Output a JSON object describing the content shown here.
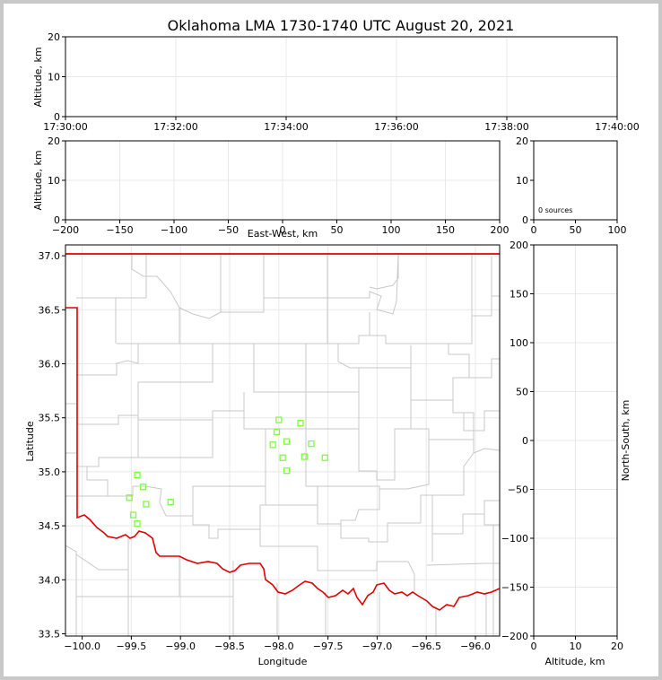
{
  "title": "Oklahoma LMA 1730-1740 UTC August 20, 2021",
  "colors": {
    "state_border": "#e00000",
    "county": "#c8c8c8",
    "grid": "#e8e8e8",
    "source_marker": "#7dff3a"
  },
  "chart_data": [
    {
      "name": "time-altitude",
      "type": "scatter",
      "xlabel": "",
      "ylabel": "Altitude, km",
      "ylim": [
        0,
        20
      ],
      "xlim": [
        "17:30:00",
        "17:40:00"
      ],
      "xticks": [
        "17:30:00",
        "17:32:00",
        "17:34:00",
        "17:36:00",
        "17:38:00",
        "17:40:00"
      ],
      "yticks": [
        "0",
        "10",
        "20"
      ],
      "grid": true,
      "points": []
    },
    {
      "name": "ew-altitude",
      "type": "scatter",
      "xlabel": "East-West, km",
      "ylabel": "Altitude, km",
      "xlim": [
        -200,
        200
      ],
      "ylim": [
        0,
        20
      ],
      "xticks": [
        "−200",
        "−150",
        "−100",
        "−50",
        "0",
        "50",
        "100",
        "150",
        "200"
      ],
      "yticks": [
        "0",
        "10",
        "20"
      ],
      "grid": true,
      "points": []
    },
    {
      "name": "histogram",
      "type": "bar",
      "xlabel": "",
      "ylabel": "",
      "xlim": [
        0,
        100
      ],
      "ylim": [
        0,
        20
      ],
      "xticks": [
        "0",
        "50",
        "100"
      ],
      "yticks": [
        "0",
        "10",
        "20"
      ],
      "annotation": "0 sources",
      "values": []
    },
    {
      "name": "plan-view",
      "type": "scatter",
      "xlabel": "Longitude",
      "ylabel": "Latitude",
      "xlim": [
        -100.15,
        -95.75
      ],
      "ylim": [
        33.48,
        37.08
      ],
      "xticks": [
        "−100.0",
        "−99.5",
        "−99.0",
        "−98.5",
        "−98.0",
        "−97.5",
        "−97.0",
        "−96.5",
        "−96.0"
      ],
      "yticks": [
        "33.5",
        "34.0",
        "34.5",
        "35.0",
        "35.5",
        "36.0",
        "36.5",
        "37.0"
      ],
      "grid": true,
      "map": "Oklahoma state outline (red) with county boundaries (gray)",
      "points": [
        {
          "lon": -99.44,
          "lat": 34.97
        },
        {
          "lon": -99.38,
          "lat": 34.86
        },
        {
          "lon": -99.52,
          "lat": 34.76
        },
        {
          "lon": -99.35,
          "lat": 34.7
        },
        {
          "lon": -99.48,
          "lat": 34.6
        },
        {
          "lon": -99.44,
          "lat": 34.52
        },
        {
          "lon": -99.1,
          "lat": 34.72
        },
        {
          "lon": -98.0,
          "lat": 35.48
        },
        {
          "lon": -97.78,
          "lat": 35.45
        },
        {
          "lon": -98.02,
          "lat": 35.37
        },
        {
          "lon": -97.92,
          "lat": 35.28
        },
        {
          "lon": -98.06,
          "lat": 35.25
        },
        {
          "lon": -97.67,
          "lat": 35.26
        },
        {
          "lon": -97.96,
          "lat": 35.13
        },
        {
          "lon": -97.74,
          "lat": 35.14
        },
        {
          "lon": -97.53,
          "lat": 35.13
        },
        {
          "lon": -97.92,
          "lat": 35.01
        }
      ]
    },
    {
      "name": "altitude-ns",
      "type": "scatter",
      "xlabel": "Altitude, km",
      "ylabel": "North-South, km",
      "xlim": [
        0,
        20
      ],
      "ylim": [
        -200,
        200
      ],
      "xticks": [
        "0",
        "10",
        "20"
      ],
      "yticks": [
        "−200",
        "−150",
        "−100",
        "−50",
        "0",
        "50",
        "100",
        "150",
        "200"
      ],
      "grid": true,
      "points": []
    }
  ]
}
